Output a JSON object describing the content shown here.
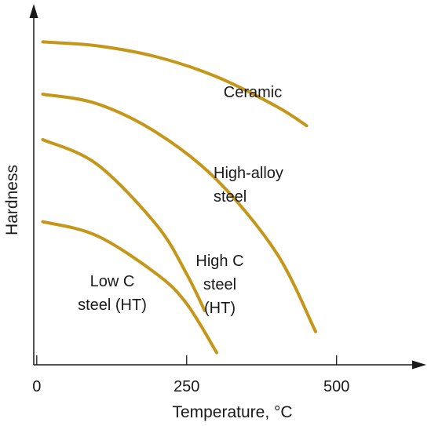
{
  "chart_data": {
    "type": "line",
    "xlabel": "Temperature, °C",
    "ylabel": "Hardness",
    "xlim": [
      -5,
      630
    ],
    "ylim": [
      0,
      100
    ],
    "x_ticks": [
      {
        "value": 0,
        "label": "0"
      },
      {
        "value": 250,
        "label": "250"
      },
      {
        "value": 500,
        "label": "500"
      }
    ],
    "y_tick_labels": false,
    "grid": false,
    "line_color": "#C4961A",
    "series": [
      {
        "name": "Ceramic",
        "label_lines": [
          "Ceramic"
        ],
        "points": [
          [
            10,
            92.5
          ],
          [
            100,
            91.4
          ],
          [
            200,
            88.2
          ],
          [
            300,
            82.5
          ],
          [
            400,
            74
          ],
          [
            450,
            68.5
          ]
        ]
      },
      {
        "name": "High-alloy steel",
        "label_lines": [
          "High-alloy",
          "steel"
        ],
        "points": [
          [
            10,
            77.5
          ],
          [
            100,
            74.8
          ],
          [
            200,
            66.5
          ],
          [
            300,
            53
          ],
          [
            400,
            32
          ],
          [
            465,
            9.5
          ]
        ]
      },
      {
        "name": "High C steel (HT)",
        "label_lines": [
          "High C",
          "steel",
          "(HT)"
        ],
        "points": [
          [
            10,
            64.5
          ],
          [
            100,
            57.5
          ],
          [
            200,
            40
          ],
          [
            250,
            26
          ],
          [
            280,
            15.5
          ]
        ]
      },
      {
        "name": "Low C steel (HT)",
        "label_lines": [
          "Low C",
          "steel (HT)"
        ],
        "points": [
          [
            10,
            41
          ],
          [
            100,
            37
          ],
          [
            200,
            26
          ],
          [
            250,
            17.5
          ],
          [
            300,
            3.5
          ]
        ]
      }
    ]
  }
}
